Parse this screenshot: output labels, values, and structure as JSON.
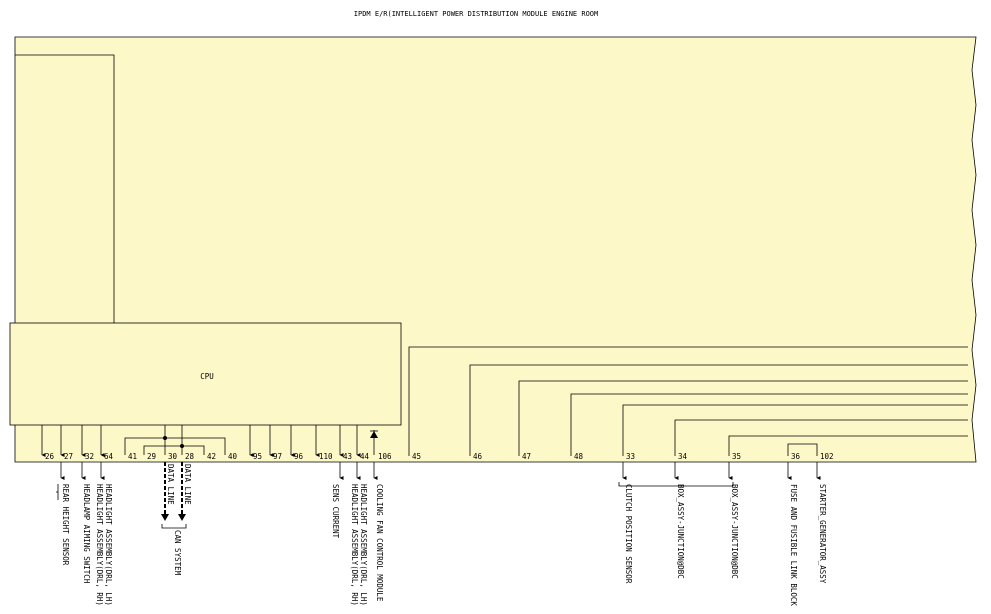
{
  "title": "IPDM E/R(INTELLIGENT POWER DISTRIBUTION MODULE ENGINE ROOM",
  "cpu_label": "CPU",
  "pins": [
    "26",
    "27",
    "32",
    "64",
    "41",
    "29",
    "30",
    "28",
    "42",
    "40",
    "95",
    "97",
    "96",
    "110",
    "43",
    "44",
    "106",
    "45",
    "46",
    "47",
    "48",
    "33",
    "34",
    "35",
    "36",
    "102"
  ],
  "external_labels": [
    "REAR HEIGHT SENSOR",
    "HEADLAMP AIMING SWITCH",
    "HEADLIGHT ASSEMBLY(DRL, RH)",
    "HEADLIGHT ASSEMBLY(DRL, LH)",
    "DATA LINE",
    "DATA LINE",
    "CAN SYSTEM",
    "SENS CURRENT",
    "HEADLIGHT ASSEMBLY(DRL, RH)",
    "HEADLIGHT ASSEMBLY(DRL, LH)",
    "COOLING FAN CONTROL MODULE",
    "CLUTCH POSITION SENSOR",
    "BOX_ASSY-JUNCTION@DBC",
    "BOX_ASSY-JUNCTION@DBC",
    "FUSE AND FUSIBLE LINK BLOCK",
    "STARTER_GENERATOR_ASSY"
  ],
  "colors": {
    "module_fill": "#fdf8c8",
    "line": "#000000"
  }
}
